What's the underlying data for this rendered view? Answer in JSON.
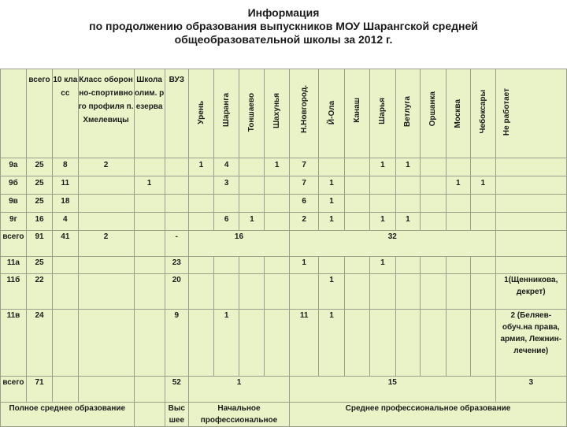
{
  "title": {
    "line1": "Информация",
    "line2": "по продолжению образования выпускников МОУ Шарангской средней",
    "line3": "общеобразовательной школы за 2012 г."
  },
  "headers": {
    "total": "всего",
    "grade10": "10 класс",
    "sport_class": "Класс оборонно-спортивного профиля п.Хмелевицы",
    "olympic_school": "Школа олим. резерва",
    "vuz": "ВУЗ",
    "cols": [
      "Урень",
      "Шаранга",
      "Тоншаево",
      "Шахунья",
      "Н.Новгород.",
      "Й-Ола",
      "Канаш",
      "Шарья",
      "Ветлуга",
      "Оршанка",
      "Москва",
      "Чебоксары",
      "Не работает"
    ]
  },
  "rows9": [
    {
      "cls": "9а",
      "total": "25",
      "g10": "8",
      "sport": "2",
      "olymp": "",
      "vuz": "",
      "c": [
        "1",
        "4",
        "",
        "1",
        "7",
        "",
        "",
        "1",
        "1",
        "",
        "",
        "",
        ""
      ]
    },
    {
      "cls": "9б",
      "total": "25",
      "g10": "11",
      "sport": "",
      "olymp": "1",
      "vuz": "",
      "c": [
        "",
        "3",
        "",
        "",
        "7",
        "1",
        "",
        "",
        "",
        "",
        "1",
        "1",
        ""
      ]
    },
    {
      "cls": "9в",
      "total": "25",
      "g10": "18",
      "sport": "",
      "olymp": "",
      "vuz": "",
      "c": [
        "",
        "",
        "",
        "",
        "6",
        "1",
        "",
        "",
        "",
        "",
        "",
        "",
        ""
      ]
    },
    {
      "cls": "9г",
      "total": "16",
      "g10": "4",
      "sport": "",
      "olymp": "",
      "vuz": "",
      "c": [
        "",
        "6",
        "1",
        "",
        "2",
        "1",
        "",
        "1",
        "1",
        "",
        "",
        "",
        ""
      ]
    }
  ],
  "total9": {
    "label": "всего",
    "total": "91",
    "g10": "41",
    "sport": "2",
    "olymp": "",
    "vuz": "-",
    "group1": "16",
    "group2": "32"
  },
  "rows11": [
    {
      "cls": "11а",
      "total": "25",
      "vuz": "23",
      "c": [
        "",
        "",
        "",
        "",
        "1",
        "",
        "",
        "1",
        "",
        "",
        "",
        "",
        ""
      ],
      "note": ""
    },
    {
      "cls": "11б",
      "total": "22",
      "vuz": "20",
      "c": [
        "",
        "",
        "",
        "",
        "",
        "1",
        "",
        "",
        "",
        "",
        "",
        "",
        ""
      ],
      "note": "1(Щенникова, декрет)"
    },
    {
      "cls": "11в",
      "total": "24",
      "vuz": "9",
      "c": [
        "",
        "1",
        "",
        "",
        "11",
        "1",
        "",
        "",
        "",
        "",
        "",
        "",
        ""
      ],
      "note": "2 (Беляев- обуч.на права, армия, Лежнин- лечение)"
    }
  ],
  "total11": {
    "label": "всего",
    "total": "71",
    "vuz": "52",
    "group1": "1",
    "group2": "15",
    "last": "3"
  },
  "footer": {
    "secondary": "Полное среднее образование",
    "higher": "Высшее",
    "primary_prof": "Начальное профессиональное",
    "secondary_prof": "Среднее профессиональное образование"
  }
}
